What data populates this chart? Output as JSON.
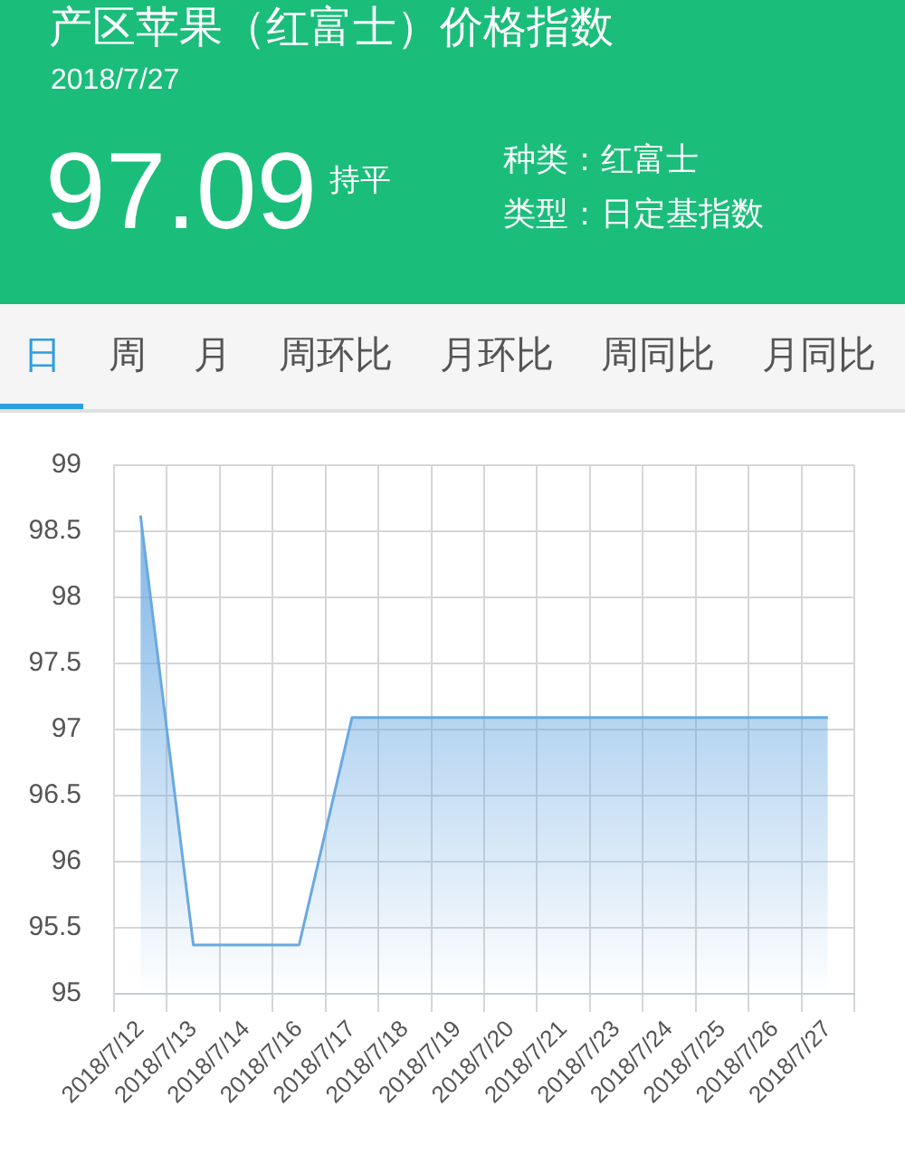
{
  "chart_data": {
    "type": "area",
    "title": "产区苹果（红富士）价格指数",
    "subtitle": "2018/7/27",
    "annotations": [
      "97.09",
      "持平",
      "种类：红富士",
      "类型：日定基指数",
      "日",
      "周",
      "月",
      "周环比",
      "月环比",
      "周同比",
      "月同比"
    ],
    "categories": [
      "2018/7/12",
      "2018/7/13",
      "2018/7/14",
      "2018/7/16",
      "2018/7/17",
      "2018/7/18",
      "2018/7/19",
      "2018/7/20",
      "2018/7/21",
      "2018/7/23",
      "2018/7/24",
      "2018/7/25",
      "2018/7/26",
      "2018/7/27"
    ],
    "series": [
      {
        "color": "#6aa9e2",
        "values": [
          98.62,
          95.37,
          95.37,
          95.37,
          97.09,
          97.09,
          97.09,
          97.09,
          97.09,
          97.09,
          97.09,
          97.09,
          97.09,
          97.09
        ]
      }
    ],
    "ylim": [
      95,
      99
    ],
    "yticks": [
      95,
      95.5,
      96,
      96.5,
      97,
      97.5,
      98,
      98.5,
      99
    ],
    "grid": true,
    "marker": "none"
  }
}
